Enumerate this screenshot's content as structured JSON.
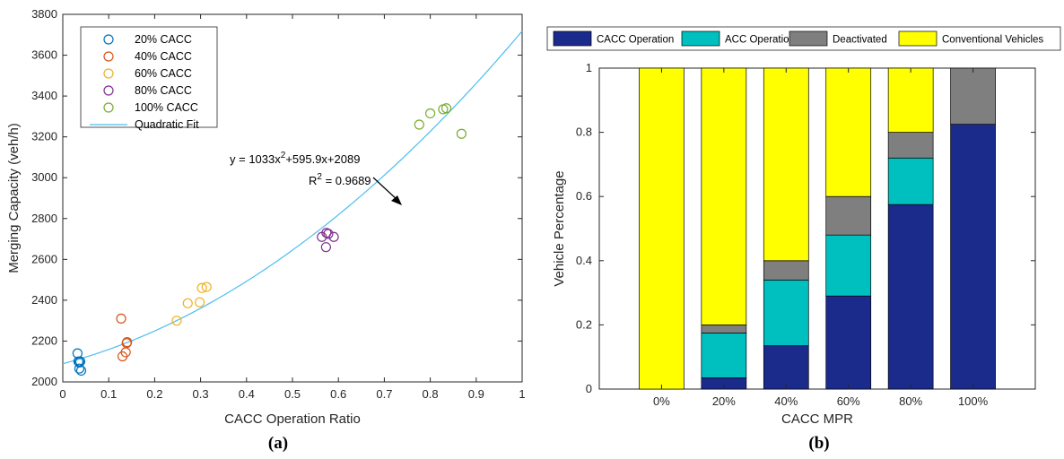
{
  "chart_data": [
    {
      "type": "scatter",
      "panel_label": "(a)",
      "xlabel": "CACC Operation Ratio",
      "ylabel": "Merging Capacity (veh/h)",
      "xlim": [
        0,
        1
      ],
      "ylim": [
        2000,
        3800
      ],
      "xticks": [
        0,
        0.1,
        0.2,
        0.3,
        0.4,
        0.5,
        0.6,
        0.7,
        0.8,
        0.9,
        1
      ],
      "xtick_labels": [
        "0",
        "0.1",
        "0.2",
        "0.3",
        "0.4",
        "0.5",
        "0.6",
        "0.7",
        "0.8",
        "0.9",
        "1"
      ],
      "yticks": [
        2000,
        2200,
        2400,
        2600,
        2800,
        3000,
        3200,
        3400,
        3600,
        3800
      ],
      "ytick_labels": [
        "2000",
        "2200",
        "2400",
        "2600",
        "2800",
        "3000",
        "3200",
        "3400",
        "3600",
        "3800"
      ],
      "legend_position": "top-left",
      "series": [
        {
          "name": "20% CACC",
          "color": "#0072bd",
          "x": [
            0.032,
            0.034,
            0.036,
            0.038,
            0.04,
            0.036
          ],
          "y": [
            2140,
            2100,
            2095,
            2100,
            2055,
            2065
          ]
        },
        {
          "name": "40% CACC",
          "color": "#d95319",
          "x": [
            0.127,
            0.13,
            0.137,
            0.14,
            0.139
          ],
          "y": [
            2310,
            2125,
            2145,
            2195,
            2190
          ]
        },
        {
          "name": "60% CACC",
          "color": "#edb120",
          "x": [
            0.248,
            0.272,
            0.298,
            0.303,
            0.313
          ],
          "y": [
            2300,
            2385,
            2390,
            2460,
            2465
          ]
        },
        {
          "name": "80% CACC",
          "color": "#7e2f8e",
          "x": [
            0.564,
            0.574,
            0.578,
            0.59,
            0.573
          ],
          "y": [
            2710,
            2730,
            2725,
            2710,
            2660
          ]
        },
        {
          "name": "100% CACC",
          "color": "#77ac30",
          "x": [
            0.776,
            0.8,
            0.828,
            0.835,
            0.868
          ],
          "y": [
            3260,
            3315,
            3335,
            3340,
            3215
          ]
        }
      ],
      "fit": {
        "name": "Quadratic Fit",
        "color": "#4dbeee",
        "coefficients": {
          "a": 1033,
          "b": 595.9,
          "c": 2089
        },
        "equation_label": "y = 1033x",
        "equation_sup": "2",
        "equation_rest": "+595.9x+2089",
        "r2_label": "R",
        "r2_sup": "2",
        "r2_rest": " = 0.9689"
      }
    },
    {
      "type": "bar",
      "stacked": true,
      "panel_label": "(b)",
      "xlabel": "CACC MPR",
      "ylabel": "Vehicle Percentage",
      "ylim": [
        0,
        1
      ],
      "yticks": [
        0,
        0.2,
        0.4,
        0.6,
        0.8,
        1
      ],
      "ytick_labels": [
        "0",
        "0.2",
        "0.4",
        "0.6",
        "0.8",
        "1"
      ],
      "categories": [
        "0%",
        "20%",
        "40%",
        "60%",
        "80%",
        "100%"
      ],
      "legend_position": "top",
      "series": [
        {
          "name": "CACC Operation",
          "color": "#1a2b8c",
          "values": [
            0,
            0.035,
            0.135,
            0.29,
            0.575,
            0.825
          ]
        },
        {
          "name": "ACC Operation",
          "color": "#00bfbf",
          "values": [
            0,
            0.14,
            0.205,
            0.19,
            0.145,
            0
          ]
        },
        {
          "name": "Deactivated",
          "color": "#7f7f7f",
          "values": [
            0,
            0.025,
            0.06,
            0.12,
            0.08,
            0.175
          ]
        },
        {
          "name": "Conventional Vehicles",
          "color": "#ffff00",
          "values": [
            1,
            0.8,
            0.6,
            0.4,
            0.2,
            0
          ]
        }
      ]
    }
  ]
}
